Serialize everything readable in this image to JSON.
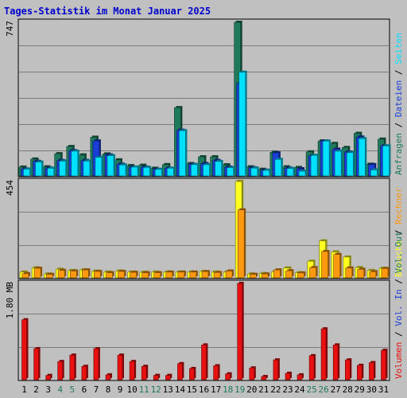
{
  "title": "Tages-Statistik im Monat Januar 2025",
  "colors": {
    "background": "#C0C0C0",
    "plot_bg": "#C0C0C0",
    "title": "#0000CC",
    "anfragen": "#1E7A5A",
    "dateien": "#1A3FD8",
    "seiten": "#00E0FF",
    "besuche": "#FFFF20",
    "rechner": "#FF9A10",
    "volumen": "#E81010",
    "weekend_label": "#1E7A5A",
    "weekday_label": "#000000"
  },
  "chart_data": [
    {
      "type": "bar",
      "name": "top",
      "ymax_label": "747",
      "legend": [
        {
          "label": "Anfragen",
          "color": "#1E7A5A"
        },
        {
          "label": "/",
          "color": "#000000"
        },
        {
          "label": "Dateien",
          "color": "#1A3FD8"
        },
        {
          "label": "/",
          "color": "#000000"
        },
        {
          "label": "Seiten",
          "color": "#00E0FF"
        }
      ],
      "ylim": [
        0,
        747
      ],
      "categories": [
        "1",
        "2",
        "3",
        "4",
        "5",
        "6",
        "7",
        "8",
        "9",
        "10",
        "11",
        "12",
        "13",
        "14",
        "15",
        "16",
        "17",
        "18",
        "19",
        "20",
        "21",
        "22",
        "23",
        "24",
        "25",
        "26",
        "27",
        "28",
        "29",
        "30",
        "31"
      ],
      "series": [
        {
          "name": "Anfragen",
          "color": "#1E7A5A",
          "values": [
            43,
            82,
            44,
            108,
            143,
            102,
            188,
            107,
            78,
            50,
            52,
            37,
            55,
            332,
            60,
            93,
            93,
            54,
            747,
            44,
            32,
            115,
            44,
            41,
            117,
            170,
            158,
            138,
            207,
            57,
            179
          ]
        },
        {
          "name": "Dateien",
          "color": "#1A3FD8",
          "values": [
            34,
            71,
            38,
            75,
            123,
            75,
            170,
            102,
            57,
            43,
            43,
            32,
            37,
            222,
            56,
            60,
            75,
            43,
            450,
            40,
            28,
            112,
            38,
            35,
            97,
            170,
            130,
            116,
            189,
            55,
            146
          ]
        },
        {
          "name": "Seiten",
          "color": "#00E0FF",
          "values": [
            33,
            67,
            37,
            72,
            120,
            72,
            90,
            98,
            53,
            43,
            41,
            32,
            37,
            220,
            55,
            54,
            70,
            40,
            504,
            38,
            27,
            80,
            36,
            23,
            100,
            169,
            120,
            113,
            181,
            29,
            146
          ]
        }
      ]
    },
    {
      "type": "bar",
      "name": "middle",
      "ymax_label": "454",
      "legend": [
        {
          "label": "Besuche",
          "color": "#FFFF20"
        },
        {
          "label": "/",
          "color": "#000000"
        },
        {
          "label": "Rechner",
          "color": "#FF9A10"
        }
      ],
      "ylim": [
        0,
        454
      ],
      "categories": [
        "1",
        "2",
        "3",
        "4",
        "5",
        "6",
        "7",
        "8",
        "9",
        "10",
        "11",
        "12",
        "13",
        "14",
        "15",
        "16",
        "17",
        "18",
        "19",
        "20",
        "21",
        "22",
        "23",
        "24",
        "25",
        "26",
        "27",
        "28",
        "29",
        "30",
        "31"
      ],
      "series": [
        {
          "name": "Besuche",
          "color": "#FFFF20",
          "values": [
            27,
            47,
            18,
            40,
            34,
            37,
            31,
            27,
            32,
            27,
            26,
            27,
            27,
            27,
            27,
            30,
            27,
            27,
            454,
            18,
            20,
            28,
            46,
            24,
            78,
            174,
            122,
            98,
            48,
            34,
            45
          ]
        },
        {
          "name": "Rechner",
          "color": "#FF9A10",
          "values": [
            20,
            45,
            16,
            35,
            32,
            37,
            30,
            24,
            30,
            26,
            24,
            24,
            27,
            27,
            27,
            29,
            25,
            32,
            320,
            16,
            18,
            37,
            33,
            23,
            48,
            124,
            110,
            46,
            40,
            29,
            44
          ]
        }
      ]
    },
    {
      "type": "bar",
      "name": "bottom",
      "ymax_label": "1.80 MB",
      "legend": [
        {
          "label": "Volumen",
          "color": "#E81010"
        },
        {
          "label": "/",
          "color": "#000000"
        },
        {
          "label": "Vol. In",
          "color": "#1A3FD8"
        },
        {
          "label": "/",
          "color": "#000000"
        },
        {
          "label": "Vol. Out",
          "color": "#1E7A5A"
        }
      ],
      "ylim": [
        0,
        1.8
      ],
      "categories": [
        "1",
        "2",
        "3",
        "4",
        "5",
        "6",
        "7",
        "8",
        "9",
        "10",
        "11",
        "12",
        "13",
        "14",
        "15",
        "16",
        "17",
        "18",
        "19",
        "20",
        "21",
        "22",
        "23",
        "24",
        "25",
        "26",
        "27",
        "28",
        "29",
        "30",
        "31"
      ],
      "series": [
        {
          "name": "Volumen",
          "color": "#E81010",
          "values": [
            1.12,
            0.58,
            0.08,
            0.34,
            0.46,
            0.25,
            0.58,
            0.09,
            0.46,
            0.34,
            0.25,
            0.08,
            0.08,
            0.3,
            0.21,
            0.65,
            0.26,
            0.11,
            1.8,
            0.22,
            0.06,
            0.37,
            0.12,
            0.09,
            0.45,
            0.95,
            0.65,
            0.37,
            0.27,
            0.32,
            0.55
          ]
        }
      ]
    }
  ],
  "x_labels": [
    {
      "text": "1",
      "weekend": false
    },
    {
      "text": "2",
      "weekend": false
    },
    {
      "text": "3",
      "weekend": false
    },
    {
      "text": "4",
      "weekend": true
    },
    {
      "text": "5",
      "weekend": true
    },
    {
      "text": "6",
      "weekend": false
    },
    {
      "text": "7",
      "weekend": false
    },
    {
      "text": "8",
      "weekend": false
    },
    {
      "text": "9",
      "weekend": false
    },
    {
      "text": "10",
      "weekend": false
    },
    {
      "text": "11",
      "weekend": true
    },
    {
      "text": "12",
      "weekend": true
    },
    {
      "text": "13",
      "weekend": false
    },
    {
      "text": "14",
      "weekend": false
    },
    {
      "text": "15",
      "weekend": false
    },
    {
      "text": "16",
      "weekend": false
    },
    {
      "text": "17",
      "weekend": false
    },
    {
      "text": "18",
      "weekend": true
    },
    {
      "text": "19",
      "weekend": true
    },
    {
      "text": "20",
      "weekend": false
    },
    {
      "text": "21",
      "weekend": false
    },
    {
      "text": "22",
      "weekend": false
    },
    {
      "text": "23",
      "weekend": false
    },
    {
      "text": "24",
      "weekend": false
    },
    {
      "text": "25",
      "weekend": true
    },
    {
      "text": "26",
      "weekend": true
    },
    {
      "text": "27",
      "weekend": false
    },
    {
      "text": "28",
      "weekend": false
    },
    {
      "text": "29",
      "weekend": false
    },
    {
      "text": "30",
      "weekend": false
    },
    {
      "text": "31",
      "weekend": false
    }
  ]
}
